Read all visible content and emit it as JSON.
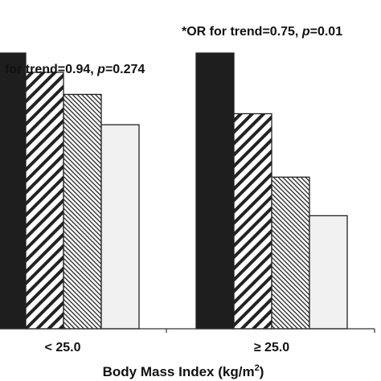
{
  "chart_data": {
    "type": "bar",
    "categories": [
      "< 25.0",
      "≥ 25.0"
    ],
    "series": [
      {
        "pattern": "solid-black",
        "values": [
          1.0,
          1.0
        ]
      },
      {
        "pattern": "wide-diagonal-hatch",
        "values": [
          0.93,
          0.78
        ]
      },
      {
        "pattern": "fine-diagonal-hatch",
        "values": [
          0.85,
          0.55
        ]
      },
      {
        "pattern": "light-gray",
        "values": [
          0.74,
          0.41
        ]
      }
    ],
    "xlabel": {
      "text": "Body Mass Index (kg/m",
      "sup": "2",
      "close": ")"
    },
    "annotations": [
      {
        "prefix": "for trend=0.94, ",
        "p_label": "p",
        "suffix": "=0.274"
      },
      {
        "prefix": "*OR for trend=0.75, ",
        "p_label": "p",
        "suffix": "=0.01"
      }
    ],
    "colors": {
      "solid": "#1e1e1e",
      "hatch": "#222222",
      "light": "#f0f0f0",
      "outline": "#222222"
    }
  }
}
